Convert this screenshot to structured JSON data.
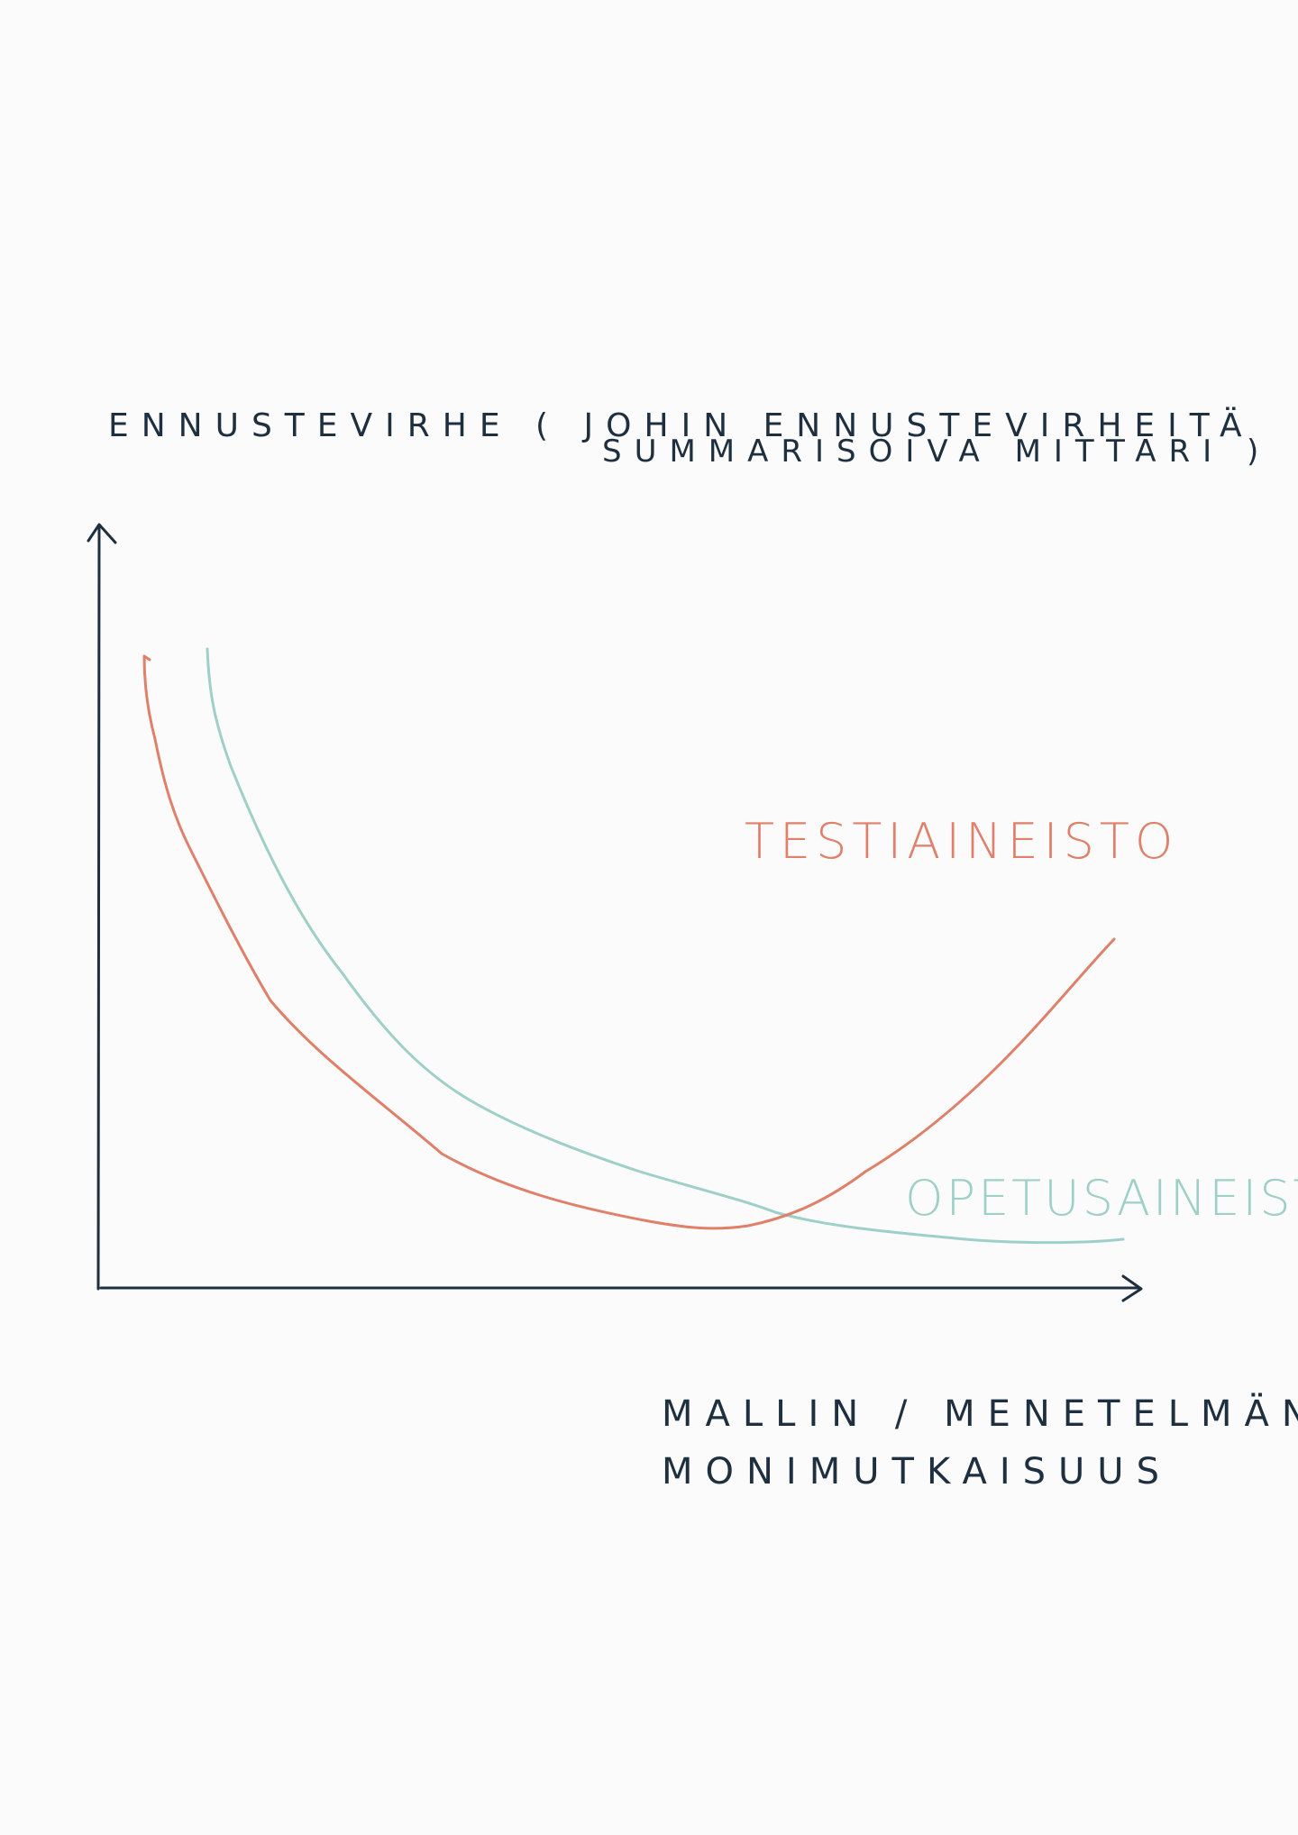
{
  "y_axis_label": {
    "line1": "ENNUSTEVIRHE  ( JOHIN ENNUSTEVIRHEITÄ",
    "line2": "SUMMARISOIVA   MITTARI )"
  },
  "x_axis_label": {
    "line1": "MALLIN / MENETELMÄN",
    "line2": "MONIMUTKAISUUS"
  },
  "curves": {
    "test": {
      "label": "TESTIAINEISTO",
      "color": "#e0806a"
    },
    "train": {
      "label": "OPETUSAINEISTO",
      "color": "#9fd0c8"
    }
  },
  "colors": {
    "ink": "#1e3040",
    "background": "#fbfbfb"
  }
}
